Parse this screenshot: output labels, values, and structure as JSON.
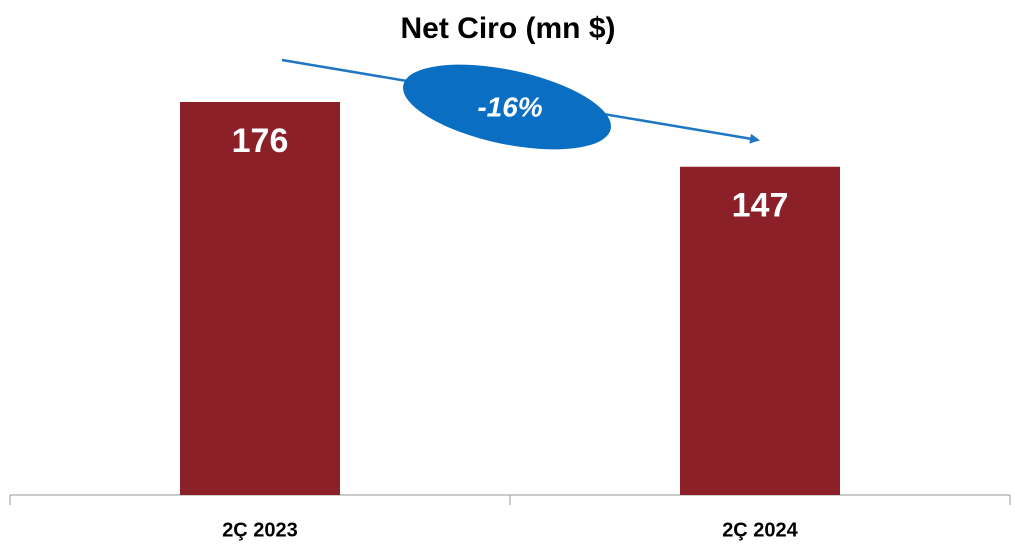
{
  "chart_data": {
    "type": "bar",
    "title": "Net Ciro (mn $)",
    "categories": [
      "2Ç 2023",
      "2Ç 2024"
    ],
    "values": [
      176,
      147
    ],
    "color": "#8b2029",
    "annotations": [
      "-16%"
    ]
  }
}
